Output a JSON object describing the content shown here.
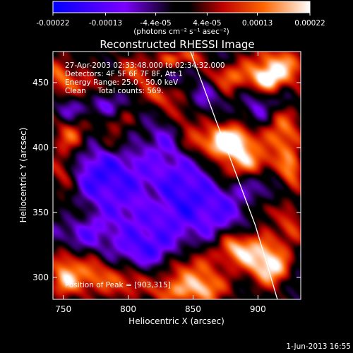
{
  "chart_data": {
    "type": "heatmap",
    "title": "Reconstructed RHESSI Image",
    "xlabel": "Heliocentric X (arcsec)",
    "ylabel": "Heliocentric Y (arcsec)",
    "xlim": [
      742,
      933
    ],
    "ylim": [
      283,
      474
    ],
    "x_ticks": [
      750,
      800,
      850,
      900
    ],
    "y_ticks": [
      300,
      350,
      400,
      450
    ],
    "colorbar": {
      "min": -0.00022,
      "max": 0.00022,
      "tick_values": [
        -0.00022,
        -0.00013,
        -4.4e-05,
        4.4e-05,
        0.00013,
        0.00022
      ],
      "tick_labels": [
        "-0.00022",
        "-0.00013",
        "-4.4e-05",
        "4.4e-05",
        "0.00013",
        "0.00022"
      ],
      "unit_label": "(photons cm⁻² s⁻¹ asec⁻²)"
    },
    "annotations": [
      "27-Apr-2003 02:33:48.000 to 02:34:32.000",
      "Detectors: 4F 5F 6F 7F 8F, Att 1",
      "Energy Range: 25.0 - 50.0 keV",
      "Clean     Total counts: 569."
    ],
    "peak_label": "Position of Peak = [903,315]",
    "peak": [
      903,
      315
    ],
    "limb_curve": [
      [
        848,
        474
      ],
      [
        868,
        420
      ],
      [
        883,
        380
      ],
      [
        898,
        340
      ],
      [
        910,
        300
      ],
      [
        915,
        283
      ]
    ],
    "sources": [
      [
        915,
        462,
        16,
        10,
        1.0
      ],
      [
        906,
        452,
        8,
        6,
        0.9
      ],
      [
        876,
        454,
        10,
        8,
        0.75
      ],
      [
        850,
        470,
        8,
        5,
        0.6
      ],
      [
        866,
        405,
        24,
        10,
        1.0
      ],
      [
        880,
        402,
        9,
        8,
        0.95
      ],
      [
        896,
        388,
        11,
        7,
        0.8
      ],
      [
        874,
        380,
        8,
        7,
        0.55
      ],
      [
        920,
        410,
        9,
        16,
        0.75
      ],
      [
        926,
        380,
        6,
        10,
        0.7
      ],
      [
        906,
        352,
        7,
        6,
        0.5
      ],
      [
        900,
        318,
        13,
        11,
        1.0
      ],
      [
        880,
        324,
        9,
        9,
        0.85
      ],
      [
        912,
        305,
        10,
        9,
        0.85
      ],
      [
        925,
        338,
        7,
        9,
        0.6
      ],
      [
        846,
        306,
        18,
        14,
        0.9
      ],
      [
        860,
        290,
        10,
        8,
        0.8
      ],
      [
        832,
        288,
        10,
        7,
        0.7
      ],
      [
        800,
        296,
        12,
        10,
        0.85
      ],
      [
        772,
        302,
        12,
        12,
        0.95
      ],
      [
        752,
        314,
        8,
        10,
        0.7
      ],
      [
        750,
        296,
        8,
        8,
        0.8
      ],
      [
        750,
        380,
        8,
        14,
        0.7
      ],
      [
        756,
        410,
        10,
        9,
        0.7
      ],
      [
        790,
        420,
        12,
        8,
        0.55
      ],
      [
        790,
        402,
        8,
        6,
        0.45
      ],
      [
        748,
        455,
        8,
        10,
        0.7
      ],
      [
        768,
        446,
        10,
        8,
        0.55
      ],
      [
        808,
        458,
        12,
        9,
        0.6
      ],
      [
        826,
        440,
        10,
        7,
        0.7
      ],
      [
        832,
        468,
        8,
        5,
        0.55
      ],
      [
        842,
        425,
        8,
        7,
        0.5
      ],
      [
        760,
        350,
        8,
        8,
        0.35
      ],
      [
        820,
        360,
        6,
        6,
        0.3
      ]
    ],
    "sinks": [
      [
        805,
        350,
        40,
        48,
        1.0
      ],
      [
        845,
        365,
        16,
        24,
        0.85
      ],
      [
        778,
        380,
        18,
        14,
        0.85
      ],
      [
        782,
        432,
        10,
        8,
        0.9
      ],
      [
        830,
        405,
        10,
        10,
        0.8
      ],
      [
        860,
        440,
        10,
        10,
        0.7
      ],
      [
        875,
        350,
        14,
        20,
        0.8
      ],
      [
        900,
        430,
        8,
        10,
        0.75
      ],
      [
        820,
        320,
        16,
        10,
        0.8
      ],
      [
        905,
        370,
        8,
        10,
        0.6
      ],
      [
        760,
        330,
        10,
        10,
        0.7
      ],
      [
        830,
        455,
        8,
        6,
        0.7
      ],
      [
        920,
        435,
        6,
        6,
        0.6
      ],
      [
        755,
        430,
        8,
        8,
        0.7
      ],
      [
        870,
        470,
        6,
        5,
        0.5
      ],
      [
        930,
        300,
        6,
        10,
        0.5
      ]
    ]
  },
  "footer": {
    "date": "1-Jun-2013 16:55"
  }
}
